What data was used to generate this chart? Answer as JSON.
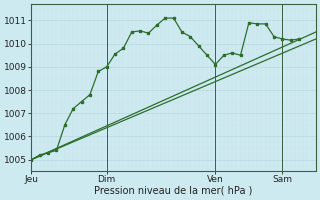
{
  "bg_color": "#cdeaf0",
  "grid_major_color": "#b8d8e0",
  "grid_minor_color": "#cce4ea",
  "line_color": "#2d6e2d",
  "xlabel": "Pression niveau de la mer( hPa )",
  "ylim": [
    1004.5,
    1011.7
  ],
  "yticks": [
    1005,
    1006,
    1007,
    1008,
    1009,
    1010,
    1011
  ],
  "xtick_labels": [
    "Jeu",
    "Dim",
    "Ven",
    "Sam"
  ],
  "xtick_positions": [
    0,
    9,
    22,
    30
  ],
  "vline_positions": [
    0,
    9,
    22,
    30
  ],
  "xlim": [
    0,
    34
  ],
  "series1_x": [
    0,
    1,
    2,
    3,
    4,
    5,
    6,
    7,
    8,
    9,
    10,
    11,
    12,
    13,
    14,
    15,
    16,
    17,
    18,
    19,
    20,
    21,
    22,
    23,
    24,
    25,
    26,
    27,
    28,
    29,
    30,
    31,
    32
  ],
  "series1_y": [
    1005.0,
    1005.2,
    1005.3,
    1005.4,
    1006.5,
    1007.2,
    1007.5,
    1007.8,
    1008.8,
    1009.0,
    1009.55,
    1009.8,
    1010.5,
    1010.55,
    1010.45,
    1010.8,
    1011.1,
    1011.1,
    1010.5,
    1010.3,
    1009.9,
    1009.5,
    1009.1,
    1009.5,
    1009.6,
    1009.5,
    1010.9,
    1010.85,
    1010.85,
    1010.3,
    1010.2,
    1010.15,
    1010.2
  ],
  "series2_x": [
    0,
    34
  ],
  "series2_y": [
    1005.0,
    1010.2
  ],
  "series3_x": [
    0,
    34
  ],
  "series3_y": [
    1005.0,
    1010.5
  ],
  "figsize": [
    3.2,
    2.0
  ],
  "dpi": 100
}
